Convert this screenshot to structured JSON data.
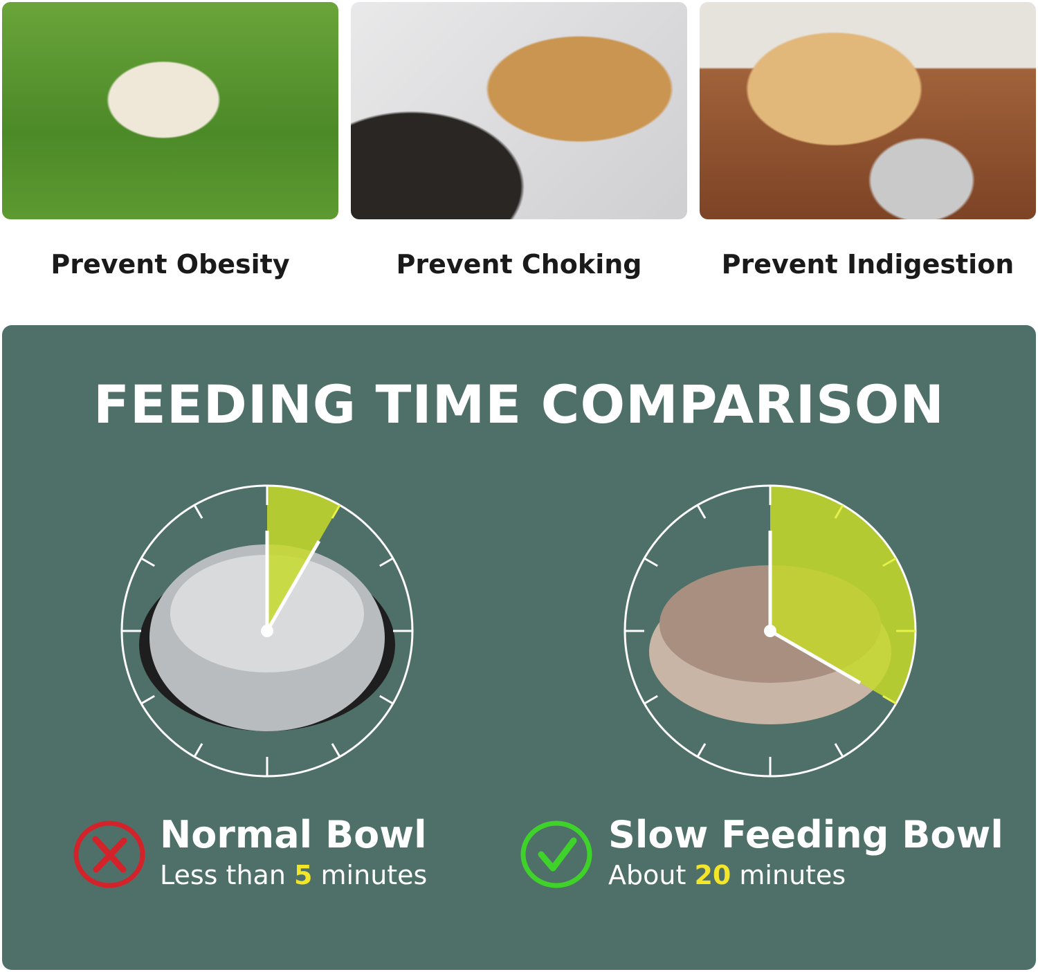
{
  "benefits": [
    {
      "caption": "Prevent Obesity",
      "photo": "pug-on-grass"
    },
    {
      "caption": "Prevent Choking",
      "photo": "golden-retriever-mouth-check"
    },
    {
      "caption": "Prevent Indigestion",
      "photo": "labrador-lying-by-bowl"
    }
  ],
  "comparison": {
    "title": "FEEDING TIME COMPARISON",
    "panel_color": "#4f7068",
    "normal": {
      "name": "Normal Bowl",
      "prefix": "Less than ",
      "value": "5",
      "suffix": " minutes",
      "minutes": 5,
      "icon": "red-x-circle-icon",
      "icon_color": "#d2232a"
    },
    "slow": {
      "name": "Slow Feeding Bowl",
      "prefix": "About ",
      "value": "20",
      "suffix": " minutes",
      "minutes": 20,
      "icon": "green-check-circle-icon",
      "icon_color": "#3fd22a"
    },
    "sector_color": "#c6d92a",
    "highlight_color": "#f2e52a",
    "clock_scale_minutes": 60
  }
}
